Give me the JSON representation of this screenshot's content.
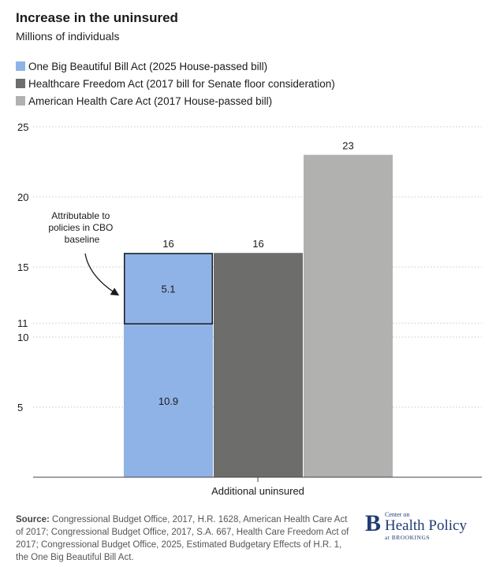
{
  "colors": {
    "series1": "#8fb3e6",
    "series2": "#6d6e6c",
    "series3": "#b1b2b0",
    "grid": "#c8c8c8",
    "axis": "#444444",
    "logo": "#1f3b73"
  },
  "chart_data": {
    "type": "bar",
    "title": "Increase in the uninsured",
    "subtitle": "Millions of individuals",
    "categories": [
      "Additional uninsured"
    ],
    "series": [
      {
        "name": "One Big Beautiful Bill Act (2025 House-passed bill)",
        "values": [
          16
        ],
        "segments": [
          {
            "value": 10.9,
            "label": "10.9"
          },
          {
            "value": 5.1,
            "label": "5.1"
          }
        ]
      },
      {
        "name": "Healthcare Freedom Act (2017 bill for Senate floor consideration)",
        "values": [
          16
        ]
      },
      {
        "name": "American Health Care Act (2017 House-passed bill)",
        "values": [
          23
        ]
      }
    ],
    "data_labels": [
      "16",
      "16",
      "23"
    ],
    "yticks": [
      5,
      10,
      11,
      15,
      20,
      25
    ],
    "ylim": [
      0,
      25
    ],
    "xlabel": "Additional uninsured",
    "ylabel": "",
    "grid": "dotted horizontal",
    "legend": "top-left",
    "annotation": {
      "lines": [
        "Attributable to",
        "policies in CBO",
        "baseline"
      ]
    }
  },
  "source": {
    "label": "Source:",
    "text": " Congressional Budget Office, 2017, H.R. 1628, American Health Care Act of 2017; Congressional Budget Office, 2017, S.A. 667, Health Care Freedom Act of 2017; Congressional Budget Office, 2025, Estimated Budgetary Effects of H.R. 1, the One Big Beautiful Bill Act."
  },
  "logo": {
    "mark": "B",
    "line1": "Center on",
    "line2": "Health Policy",
    "line3": "at BROOKINGS"
  }
}
